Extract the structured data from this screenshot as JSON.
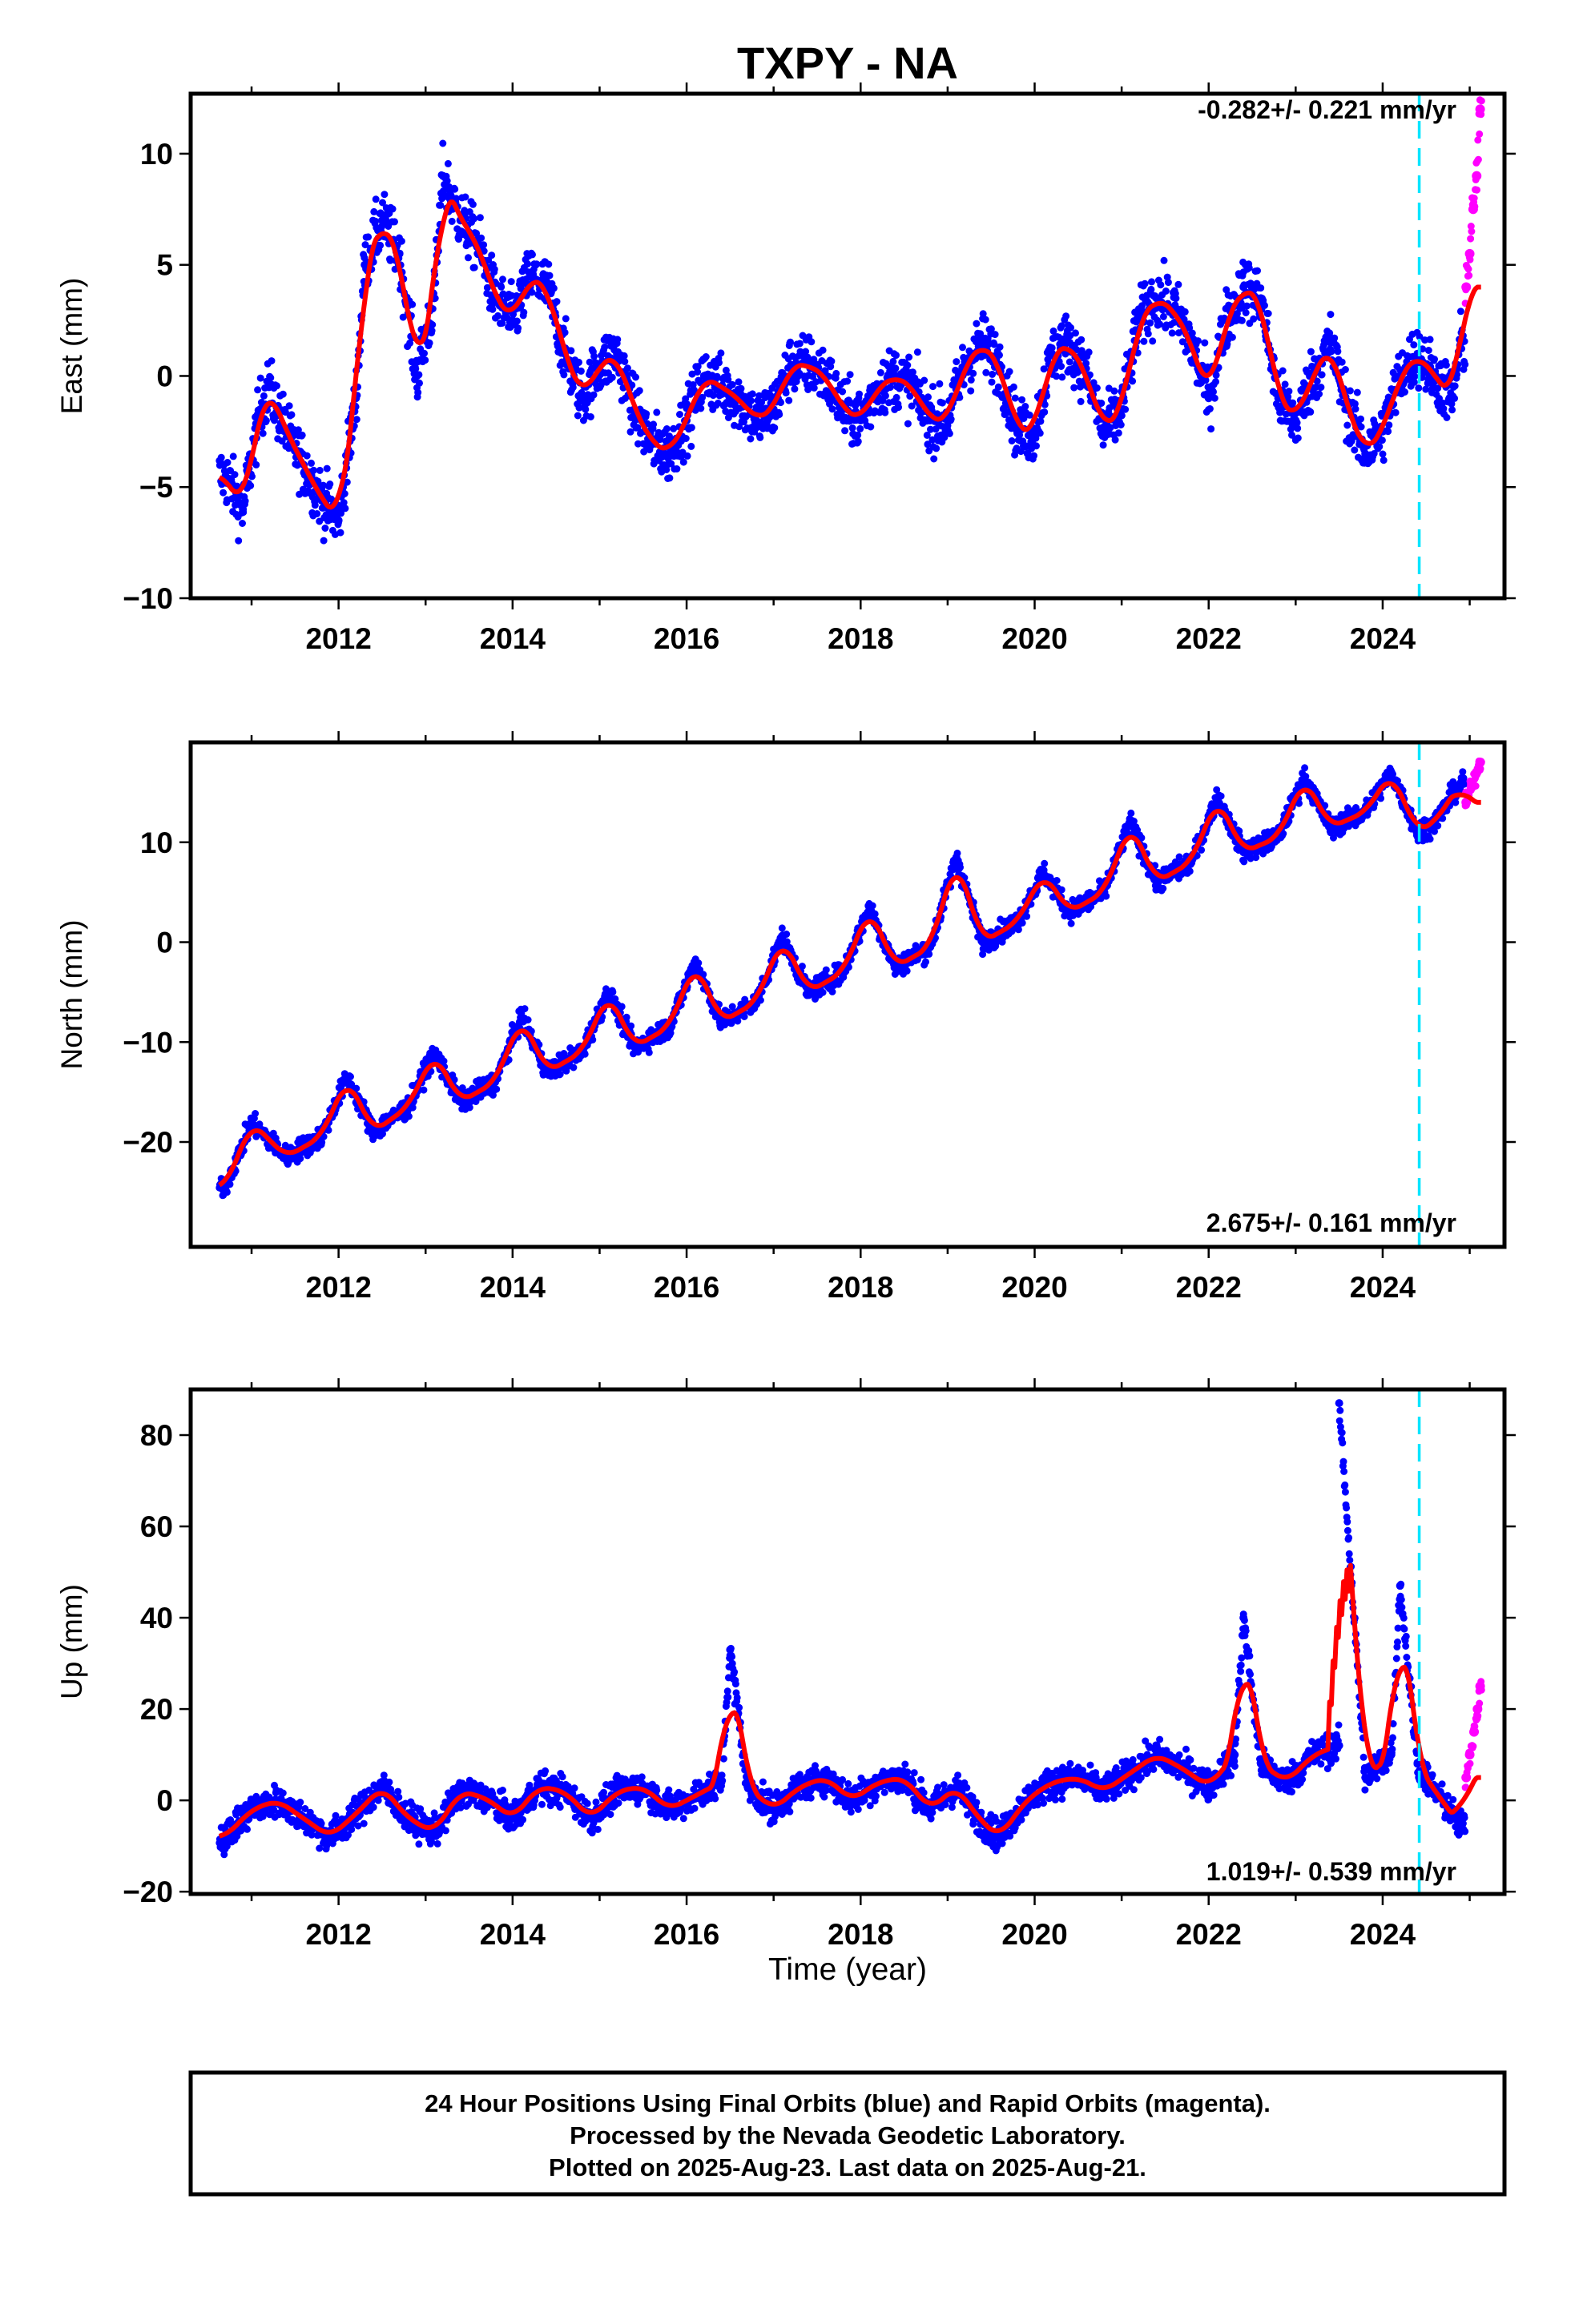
{
  "title": "TXPY - NA",
  "x_axis_label": "Time (year)",
  "x_ticks": [
    "2012",
    "2014",
    "2016",
    "2018",
    "2020",
    "2022",
    "2024"
  ],
  "footer": {
    "line1": "24 Hour Positions Using Final Orbits (blue) and Rapid Orbits (magenta).",
    "line2": "Processed by the Nevada Geodetic Laboratory.",
    "line3": "Plotted on 2025-Aug-23. Last data on 2025-Aug-21."
  },
  "colors": {
    "final_orbits": "#0000ff",
    "rapid_orbits": "#ff00ff",
    "model": "#ff0000",
    "break_line": "#00e5ff"
  },
  "chart_data": [
    {
      "type": "scatter",
      "component": "east",
      "ylabel": "East (mm)",
      "rate_text": "-0.282+/- 0.221 mm/yr",
      "xlim": [
        2010.8,
        2025.9
      ],
      "ylim": [
        -10,
        12.7
      ],
      "y_ticks": [
        "10",
        "5",
        "0",
        "−5",
        "−10"
      ],
      "y_tick_values": [
        10,
        5,
        0,
        -5,
        -10
      ],
      "break_epoch": 2024.92,
      "rapid_start": 2025.45,
      "data_start": 2011.13,
      "data_end": 2025.64,
      "final_orbit_points": [
        [
          2011.2,
          -4.5
        ],
        [
          2011.4,
          -6.0
        ],
        [
          2011.6,
          -1.5
        ],
        [
          2011.7,
          -0.5
        ],
        [
          2011.9,
          -2.5
        ],
        [
          2012.1,
          -4.0
        ],
        [
          2012.3,
          -5.5
        ],
        [
          2012.5,
          -6.5
        ],
        [
          2012.7,
          -1.0
        ],
        [
          2012.8,
          5.0
        ],
        [
          2013.0,
          7.0
        ],
        [
          2013.2,
          5.5
        ],
        [
          2013.4,
          0.0
        ],
        [
          2013.6,
          3.5
        ],
        [
          2013.7,
          9.0
        ],
        [
          2013.9,
          7.0
        ],
        [
          2014.1,
          6.0
        ],
        [
          2014.3,
          3.5
        ],
        [
          2014.5,
          2.5
        ],
        [
          2014.7,
          4.5
        ],
        [
          2014.9,
          4.0
        ],
        [
          2015.1,
          1.0
        ],
        [
          2015.3,
          -1.0
        ],
        [
          2015.5,
          0.5
        ],
        [
          2015.7,
          1.0
        ],
        [
          2015.9,
          -1.5
        ],
        [
          2016.1,
          -3.0
        ],
        [
          2016.3,
          -3.5
        ],
        [
          2016.5,
          -2.0
        ],
        [
          2016.7,
          0.0
        ],
        [
          2016.9,
          -0.5
        ],
        [
          2017.1,
          -1.0
        ],
        [
          2017.3,
          -2.0
        ],
        [
          2017.5,
          -1.5
        ],
        [
          2017.7,
          0.5
        ],
        [
          2017.9,
          0.5
        ],
        [
          2018.1,
          0.0
        ],
        [
          2018.3,
          -1.5
        ],
        [
          2018.5,
          -2.0
        ],
        [
          2018.7,
          -0.5
        ],
        [
          2018.9,
          0.0
        ],
        [
          2019.1,
          -0.5
        ],
        [
          2019.3,
          -2.0
        ],
        [
          2019.5,
          -2.0
        ],
        [
          2019.7,
          0.5
        ],
        [
          2019.9,
          1.5
        ],
        [
          2020.1,
          0.5
        ],
        [
          2020.3,
          -2.5
        ],
        [
          2020.5,
          -2.5
        ],
        [
          2020.7,
          1.0
        ],
        [
          2020.9,
          1.5
        ],
        [
          2021.1,
          0.0
        ],
        [
          2021.3,
          -2.5
        ],
        [
          2021.5,
          -1.5
        ],
        [
          2021.7,
          2.5
        ],
        [
          2021.9,
          3.5
        ],
        [
          2022.1,
          3.0
        ],
        [
          2022.3,
          1.5
        ],
        [
          2022.5,
          -1.0
        ],
        [
          2022.7,
          2.5
        ],
        [
          2022.9,
          4.0
        ],
        [
          2023.1,
          3.5
        ],
        [
          2023.3,
          -1.0
        ],
        [
          2023.5,
          -2.0
        ],
        [
          2023.7,
          0.0
        ],
        [
          2023.9,
          1.5
        ],
        [
          2024.1,
          -1.5
        ],
        [
          2024.3,
          -3.5
        ],
        [
          2024.5,
          -2.5
        ],
        [
          2024.7,
          0.0
        ],
        [
          2024.9,
          1.0
        ],
        [
          2025.1,
          0.0
        ],
        [
          2025.3,
          -1.0
        ],
        [
          2025.4,
          1.5
        ]
      ],
      "rapid_orbit_points": [
        [
          2025.46,
          4.0
        ],
        [
          2025.5,
          5.5
        ],
        [
          2025.54,
          7.5
        ],
        [
          2025.58,
          9.0
        ],
        [
          2025.62,
          12.0
        ]
      ]
    },
    {
      "type": "scatter",
      "component": "north",
      "ylabel": "North (mm)",
      "rate_text": "2.675+/- 0.161 mm/yr",
      "xlim": [
        2010.8,
        2025.9
      ],
      "ylim": [
        -30.5,
        20
      ],
      "y_ticks": [
        "10",
        "0",
        "−10",
        "−20"
      ],
      "y_tick_values": [
        10,
        0,
        -10,
        -20
      ],
      "break_epoch": 2024.92,
      "rapid_start": 2025.45,
      "data_start": 2011.13,
      "data_end": 2025.64,
      "final_orbit_points": [
        [
          2011.2,
          -24.5
        ],
        [
          2011.5,
          -18.0
        ],
        [
          2011.9,
          -21.5
        ],
        [
          2012.3,
          -19.5
        ],
        [
          2012.6,
          -13.5
        ],
        [
          2012.9,
          -19.0
        ],
        [
          2013.3,
          -16.5
        ],
        [
          2013.6,
          -11.0
        ],
        [
          2013.9,
          -16.0
        ],
        [
          2014.3,
          -14.0
        ],
        [
          2014.6,
          -7.5
        ],
        [
          2014.9,
          -13.0
        ],
        [
          2015.3,
          -11.0
        ],
        [
          2015.6,
          -5.0
        ],
        [
          2015.9,
          -10.5
        ],
        [
          2016.3,
          -8.5
        ],
        [
          2016.6,
          -2.0
        ],
        [
          2016.9,
          -8.0
        ],
        [
          2017.3,
          -6.0
        ],
        [
          2017.6,
          0.5
        ],
        [
          2017.9,
          -5.0
        ],
        [
          2018.3,
          -3.0
        ],
        [
          2018.6,
          3.5
        ],
        [
          2018.9,
          -2.5
        ],
        [
          2019.3,
          -0.5
        ],
        [
          2019.6,
          8.5
        ],
        [
          2019.9,
          0.0
        ],
        [
          2020.3,
          2.0
        ],
        [
          2020.6,
          7.0
        ],
        [
          2020.9,
          3.0
        ],
        [
          2021.3,
          5.0
        ],
        [
          2021.6,
          12.0
        ],
        [
          2021.9,
          6.0
        ],
        [
          2022.3,
          8.0
        ],
        [
          2022.6,
          14.5
        ],
        [
          2022.9,
          9.0
        ],
        [
          2023.3,
          10.5
        ],
        [
          2023.6,
          16.5
        ],
        [
          2023.9,
          11.5
        ],
        [
          2024.3,
          13.0
        ],
        [
          2024.6,
          17.0
        ],
        [
          2024.9,
          11.0
        ],
        [
          2025.1,
          12.0
        ],
        [
          2025.4,
          16.0
        ]
      ],
      "rapid_orbit_points": [
        [
          2025.46,
          14.0
        ],
        [
          2025.52,
          15.5
        ],
        [
          2025.58,
          17.0
        ],
        [
          2025.62,
          18.0
        ]
      ]
    },
    {
      "type": "scatter",
      "component": "up",
      "ylabel": "Up (mm)",
      "rate_text": "1.019+/- 0.539 mm/yr",
      "xlim": [
        2010.8,
        2025.9
      ],
      "ylim": [
        -20.5,
        90
      ],
      "y_ticks": [
        "80",
        "60",
        "40",
        "20",
        "0",
        "−20"
      ],
      "y_tick_values": [
        80,
        60,
        40,
        20,
        0,
        -20
      ],
      "break_epoch": 2024.92,
      "rapid_start": 2025.45,
      "data_start": 2011.13,
      "data_end": 2025.64,
      "final_orbit_points": [
        [
          2011.2,
          -8.0
        ],
        [
          2011.5,
          -2.0
        ],
        [
          2011.8,
          0.0
        ],
        [
          2012.1,
          -4.0
        ],
        [
          2012.4,
          -8.0
        ],
        [
          2012.7,
          -3.0
        ],
        [
          2013.0,
          3.0
        ],
        [
          2013.3,
          -4.0
        ],
        [
          2013.6,
          -7.0
        ],
        [
          2013.9,
          2.0
        ],
        [
          2014.2,
          0.5
        ],
        [
          2014.5,
          -4.0
        ],
        [
          2014.8,
          3.0
        ],
        [
          2015.1,
          2.0
        ],
        [
          2015.4,
          -4.0
        ],
        [
          2015.7,
          2.0
        ],
        [
          2016.0,
          3.0
        ],
        [
          2016.3,
          -2.0
        ],
        [
          2016.6,
          1.0
        ],
        [
          2016.9,
          4.0
        ],
        [
          2017.0,
          33.0
        ],
        [
          2017.2,
          3.0
        ],
        [
          2017.5,
          -2.0
        ],
        [
          2017.8,
          3.0
        ],
        [
          2018.1,
          5.0
        ],
        [
          2018.4,
          0.0
        ],
        [
          2018.7,
          4.0
        ],
        [
          2019.0,
          5.0
        ],
        [
          2019.3,
          -2.0
        ],
        [
          2019.6,
          3.0
        ],
        [
          2019.9,
          -5.0
        ],
        [
          2020.1,
          -8.0
        ],
        [
          2020.4,
          0.0
        ],
        [
          2020.7,
          4.0
        ],
        [
          2021.0,
          5.0
        ],
        [
          2021.3,
          2.0
        ],
        [
          2021.6,
          6.0
        ],
        [
          2021.9,
          10.0
        ],
        [
          2022.2,
          7.0
        ],
        [
          2022.5,
          3.0
        ],
        [
          2022.8,
          10.0
        ],
        [
          2022.9,
          40.0
        ],
        [
          2023.1,
          8.0
        ],
        [
          2023.4,
          4.0
        ],
        [
          2023.7,
          10.0
        ],
        [
          2024.0,
          12.0
        ],
        [
          2024.0,
          87.0
        ],
        [
          2024.3,
          5.0
        ],
        [
          2024.6,
          10.0
        ],
        [
          2024.7,
          47.0
        ],
        [
          2024.9,
          8.0
        ],
        [
          2025.1,
          2.0
        ],
        [
          2025.3,
          -3.0
        ],
        [
          2025.4,
          -6.0
        ]
      ],
      "rapid_orbit_points": [
        [
          2025.46,
          5.0
        ],
        [
          2025.5,
          10.0
        ],
        [
          2025.55,
          15.0
        ],
        [
          2025.59,
          20.0
        ],
        [
          2025.62,
          25.0
        ]
      ]
    }
  ]
}
